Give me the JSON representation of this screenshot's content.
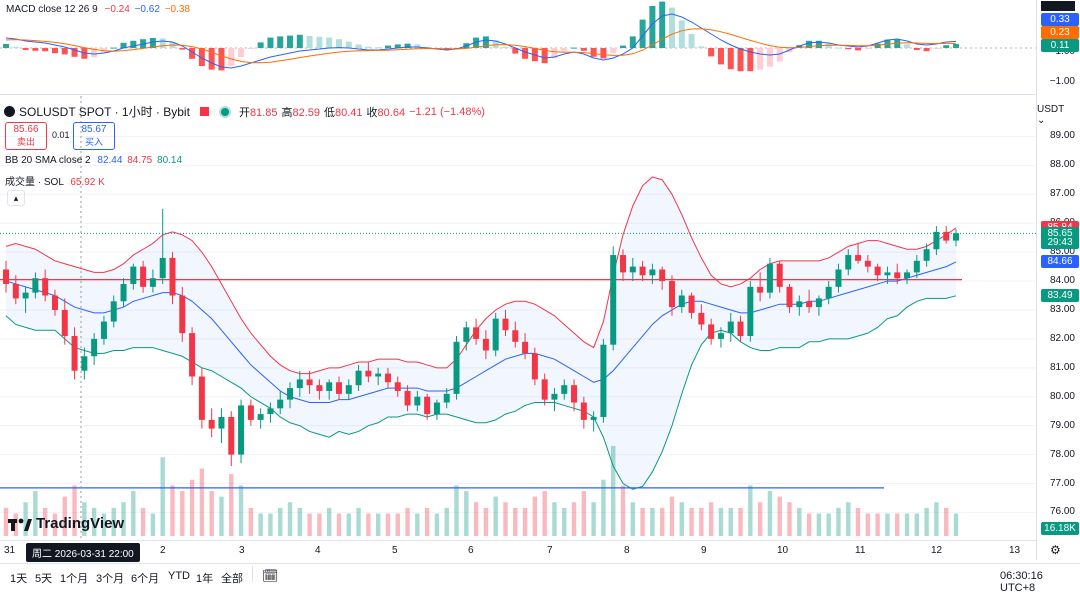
{
  "macd": {
    "title": "MACD close 12 26 9",
    "v1": "−0.24",
    "v2": "−0.62",
    "v3": "−0.38",
    "colors": {
      "v1": "#f23645",
      "v2": "#2962ff",
      "v3": "#ff6d00"
    },
    "axis_ticks": [
      "1.00",
      "−1.00"
    ],
    "badges": [
      {
        "text": "0.33",
        "color": "#2962ff"
      },
      {
        "text": "0.23",
        "color": "#ff6d00"
      },
      {
        "text": "0.11",
        "color": "#089981"
      }
    ],
    "macd_line": [
      0.5,
      0.45,
      0.35,
      0.3,
      0.25,
      0.15,
      0.05,
      -0.1,
      -0.25,
      -0.3,
      -0.25,
      -0.15,
      0.0,
      0.1,
      0.2,
      0.3,
      0.35,
      0.3,
      0.1,
      -0.2,
      -0.5,
      -0.75,
      -0.95,
      -1.0,
      -0.9,
      -0.75,
      -0.6,
      -0.45,
      -0.35,
      -0.25,
      -0.15,
      -0.1,
      -0.05,
      0.0,
      0.02,
      0.0,
      -0.05,
      -0.1,
      -0.1,
      -0.05,
      0.0,
      0.05,
      0.05,
      0.0,
      -0.05,
      -0.1,
      -0.05,
      0.1,
      0.3,
      0.4,
      0.35,
      0.2,
      0.0,
      -0.2,
      -0.35,
      -0.5,
      -0.45,
      -0.3,
      -0.2,
      -0.3,
      -0.5,
      -0.6,
      -0.5,
      -0.3,
      0.0,
      0.6,
      1.2,
      1.6,
      1.7,
      1.55,
      1.3,
      1.0,
      0.7,
      0.4,
      0.15,
      -0.05,
      -0.2,
      -0.3,
      -0.35,
      -0.3,
      -0.1,
      0.1,
      0.25,
      0.3,
      0.25,
      0.15,
      0.1,
      0.05,
      0.1,
      0.25,
      0.4,
      0.45,
      0.35,
      0.2,
      0.15,
      0.2,
      0.3,
      0.33
    ],
    "signal_line": [
      0.4,
      0.42,
      0.4,
      0.37,
      0.33,
      0.28,
      0.21,
      0.12,
      0.02,
      -0.07,
      -0.14,
      -0.16,
      -0.13,
      -0.08,
      -0.02,
      0.05,
      0.11,
      0.15,
      0.14,
      0.07,
      -0.05,
      -0.21,
      -0.39,
      -0.55,
      -0.67,
      -0.73,
      -0.74,
      -0.71,
      -0.64,
      -0.56,
      -0.48,
      -0.4,
      -0.33,
      -0.26,
      -0.2,
      -0.16,
      -0.14,
      -0.13,
      -0.12,
      -0.11,
      -0.09,
      -0.06,
      -0.04,
      -0.03,
      -0.03,
      -0.05,
      -0.05,
      -0.02,
      0.04,
      0.11,
      0.16,
      0.17,
      0.14,
      0.07,
      -0.02,
      -0.12,
      -0.19,
      -0.21,
      -0.21,
      -0.23,
      -0.28,
      -0.34,
      -0.37,
      -0.36,
      -0.29,
      -0.11,
      0.15,
      0.44,
      0.69,
      0.86,
      0.95,
      0.96,
      0.91,
      0.81,
      0.68,
      0.53,
      0.38,
      0.24,
      0.12,
      0.04,
      0.01,
      0.03,
      0.07,
      0.12,
      0.14,
      0.14,
      0.13,
      0.11,
      0.11,
      0.14,
      0.19,
      0.24,
      0.26,
      0.25,
      0.23,
      0.22,
      0.23,
      0.23
    ]
  },
  "header": {
    "symbol": "SOLUSDT SPOT · 1小时 · Bybit",
    "open_label": "开",
    "open": "81.85",
    "high_label": "高",
    "high": "82.59",
    "low_label": "低",
    "low": "80.41",
    "close_label": "收",
    "close": "80.64",
    "change": "−1.21 (−1.48%)",
    "sell_price": "85.66",
    "sell_label": "卖出",
    "spread": "0.01",
    "buy_price": "85.67",
    "buy_label": "买入",
    "currency": "USDT"
  },
  "bb_legend": {
    "label": "BB 20 SMA close 2",
    "basis": "82.44",
    "upper": "84.75",
    "lower": "80.14"
  },
  "vol_legend": {
    "label": "成交量 · SOL",
    "value": "65.92 K"
  },
  "collapse_icon": "chevron-up-icon",
  "price_axis": {
    "ticks": [
      "89.00",
      "88.00",
      "87.00",
      "86.00",
      "85.00",
      "84.00",
      "83.00",
      "82.00",
      "81.00",
      "80.00",
      "79.00",
      "78.00",
      "77.00",
      "76.00"
    ],
    "badges": [
      {
        "text": "85.84",
        "color": "#f23645",
        "price": 85.84
      },
      {
        "text": "85.65",
        "color": "#089981",
        "price": 85.65
      },
      {
        "text": "29:43",
        "color": "#089981",
        "price": 85.35
      },
      {
        "text": "84.66",
        "color": "#2962ff",
        "price": 84.66
      },
      {
        "text": "83.49",
        "color": "#089981",
        "price": 83.49
      }
    ],
    "volume_badge": {
      "text": "16.18K",
      "color": "#089981"
    }
  },
  "time_axis": {
    "labels": [
      "31",
      "2",
      "3",
      "4",
      "5",
      "6",
      "7",
      "8",
      "9",
      "10",
      "11",
      "12",
      "13"
    ],
    "crosshair_label": "周二 2026-03-31   22:00"
  },
  "ranges": [
    "1天",
    "5天",
    "1个月",
    "3个月",
    "6个月",
    "YTD",
    "1年",
    "全部"
  ],
  "calendar_icon": "calendar-icon",
  "clock": "06:30:16 UTC+8",
  "gear_icon": "gear-icon",
  "logo_text": "TradingView",
  "horizontal_lines": [
    {
      "price": 84.05,
      "color": "#f23645"
    },
    {
      "price": 76.85,
      "color": "#2962ff"
    }
  ],
  "chart_data": {
    "type": "candlestick",
    "ylim": [
      75.6,
      89.5
    ],
    "ohlc": [
      [
        84.4,
        84.7,
        83.6,
        83.9
      ],
      [
        83.9,
        84.2,
        83.2,
        83.4
      ],
      [
        83.4,
        83.8,
        82.9,
        83.6
      ],
      [
        83.6,
        84.3,
        83.4,
        84.1
      ],
      [
        84.1,
        84.4,
        83.3,
        83.5
      ],
      [
        83.5,
        83.7,
        82.8,
        83.0
      ],
      [
        83.0,
        83.4,
        81.8,
        82.1
      ],
      [
        82.1,
        82.4,
        80.6,
        80.9
      ],
      [
        80.9,
        81.7,
        80.6,
        81.4
      ],
      [
        81.4,
        82.2,
        81.1,
        82.0
      ],
      [
        82.0,
        82.8,
        81.8,
        82.6
      ],
      [
        82.6,
        83.5,
        82.4,
        83.3
      ],
      [
        83.3,
        84.1,
        83.1,
        83.9
      ],
      [
        83.9,
        84.6,
        83.7,
        84.5
      ],
      [
        84.5,
        84.7,
        83.6,
        83.8
      ],
      [
        83.8,
        84.4,
        83.6,
        84.1
      ],
      [
        84.1,
        86.5,
        83.9,
        84.8
      ],
      [
        84.8,
        85.0,
        83.2,
        83.5
      ],
      [
        83.5,
        83.8,
        81.9,
        82.2
      ],
      [
        82.2,
        82.4,
        80.4,
        80.7
      ],
      [
        80.7,
        81.0,
        78.9,
        79.2
      ],
      [
        79.2,
        79.6,
        78.6,
        78.9
      ],
      [
        78.9,
        79.6,
        78.4,
        79.3
      ],
      [
        79.3,
        79.5,
        77.6,
        78.0
      ],
      [
        78.0,
        79.9,
        77.7,
        79.7
      ],
      [
        79.7,
        79.9,
        79.0,
        79.2
      ],
      [
        79.2,
        79.6,
        78.9,
        79.4
      ],
      [
        79.4,
        79.8,
        79.1,
        79.6
      ],
      [
        79.6,
        80.2,
        79.4,
        79.9
      ],
      [
        79.9,
        80.5,
        79.6,
        80.3
      ],
      [
        80.3,
        80.9,
        80.0,
        80.6
      ],
      [
        80.6,
        80.9,
        80.1,
        80.4
      ],
      [
        80.4,
        80.6,
        79.9,
        80.2
      ],
      [
        80.2,
        80.6,
        79.9,
        80.5
      ],
      [
        80.5,
        80.7,
        79.9,
        80.1
      ],
      [
        80.1,
        80.6,
        79.9,
        80.4
      ],
      [
        80.4,
        81.1,
        80.2,
        80.9
      ],
      [
        80.9,
        81.2,
        80.5,
        80.7
      ],
      [
        80.7,
        81.0,
        80.4,
        80.8
      ],
      [
        80.8,
        81.0,
        80.3,
        80.5
      ],
      [
        80.5,
        80.7,
        80.0,
        80.2
      ],
      [
        80.2,
        80.4,
        79.5,
        79.7
      ],
      [
        79.7,
        80.2,
        79.5,
        80.0
      ],
      [
        80.0,
        80.1,
        79.2,
        79.4
      ],
      [
        79.4,
        79.9,
        79.2,
        79.8
      ],
      [
        79.8,
        80.3,
        79.6,
        80.1
      ],
      [
        80.1,
        82.1,
        79.9,
        81.9
      ],
      [
        81.9,
        82.6,
        81.6,
        82.4
      ],
      [
        82.4,
        82.7,
        81.8,
        82.0
      ],
      [
        82.0,
        82.3,
        81.3,
        81.6
      ],
      [
        81.6,
        82.9,
        81.4,
        82.7
      ],
      [
        82.7,
        83.0,
        82.1,
        82.3
      ],
      [
        82.3,
        82.6,
        81.7,
        81.9
      ],
      [
        81.9,
        82.2,
        81.3,
        81.5
      ],
      [
        81.5,
        81.7,
        80.4,
        80.6
      ],
      [
        80.6,
        80.8,
        79.7,
        79.9
      ],
      [
        79.9,
        80.3,
        79.5,
        80.1
      ],
      [
        80.1,
        80.6,
        79.9,
        80.4
      ],
      [
        80.4,
        80.6,
        79.5,
        79.8
      ],
      [
        79.8,
        80.0,
        78.9,
        79.2
      ],
      [
        79.2,
        79.5,
        78.8,
        79.3
      ],
      [
        79.3,
        82.0,
        79.1,
        81.8
      ],
      [
        81.8,
        85.2,
        81.6,
        84.9
      ],
      [
        84.9,
        85.1,
        84.0,
        84.3
      ],
      [
        84.3,
        84.8,
        84.0,
        84.5
      ],
      [
        84.5,
        84.7,
        84.0,
        84.2
      ],
      [
        84.2,
        84.6,
        83.9,
        84.4
      ],
      [
        84.4,
        84.5,
        83.7,
        84.0
      ],
      [
        84.0,
        84.2,
        82.8,
        83.1
      ],
      [
        83.1,
        83.7,
        82.9,
        83.5
      ],
      [
        83.5,
        83.6,
        82.7,
        82.9
      ],
      [
        82.9,
        83.2,
        82.3,
        82.5
      ],
      [
        82.5,
        82.7,
        81.8,
        82.0
      ],
      [
        82.0,
        82.4,
        81.7,
        82.2
      ],
      [
        82.2,
        82.9,
        81.9,
        82.6
      ],
      [
        82.6,
        82.8,
        81.9,
        82.1
      ],
      [
        82.1,
        84.0,
        81.9,
        83.8
      ],
      [
        83.8,
        84.3,
        83.3,
        83.6
      ],
      [
        83.6,
        84.8,
        83.4,
        84.6
      ],
      [
        84.6,
        84.7,
        83.6,
        83.8
      ],
      [
        83.8,
        83.9,
        82.9,
        83.1
      ],
      [
        83.1,
        83.5,
        82.8,
        83.3
      ],
      [
        83.3,
        83.7,
        82.9,
        83.1
      ],
      [
        83.1,
        83.5,
        82.8,
        83.4
      ],
      [
        83.4,
        84.0,
        83.2,
        83.8
      ],
      [
        83.8,
        84.6,
        83.6,
        84.4
      ],
      [
        84.4,
        85.1,
        84.2,
        84.9
      ],
      [
        84.9,
        85.3,
        84.6,
        84.7
      ],
      [
        84.7,
        84.9,
        84.3,
        84.5
      ],
      [
        84.5,
        84.6,
        84.0,
        84.2
      ],
      [
        84.2,
        84.5,
        83.9,
        84.3
      ],
      [
        84.3,
        84.6,
        83.9,
        84.1
      ],
      [
        84.1,
        84.4,
        83.9,
        84.3
      ],
      [
        84.3,
        84.9,
        84.1,
        84.7
      ],
      [
        84.7,
        85.3,
        84.5,
        85.1
      ],
      [
        85.1,
        85.9,
        84.9,
        85.7
      ],
      [
        85.7,
        85.9,
        85.3,
        85.4
      ],
      [
        85.4,
        85.8,
        85.2,
        85.65
      ]
    ],
    "bb_basis": [
      84.0,
      83.9,
      83.8,
      83.7,
      83.6,
      83.5,
      83.3,
      83.1,
      83.0,
      82.9,
      82.9,
      83.0,
      83.1,
      83.3,
      83.4,
      83.5,
      83.6,
      83.6,
      83.5,
      83.3,
      83.0,
      82.7,
      82.3,
      81.9,
      81.5,
      81.1,
      80.8,
      80.5,
      80.2,
      80.0,
      79.9,
      79.8,
      79.8,
      79.8,
      79.9,
      79.9,
      80.0,
      80.1,
      80.2,
      80.3,
      80.3,
      80.3,
      80.3,
      80.2,
      80.2,
      80.2,
      80.3,
      80.5,
      80.7,
      80.9,
      81.1,
      81.3,
      81.4,
      81.5,
      81.5,
      81.4,
      81.3,
      81.1,
      80.9,
      80.7,
      80.5,
      80.6,
      80.9,
      81.3,
      81.7,
      82.1,
      82.5,
      82.8,
      83.0,
      83.2,
      83.3,
      83.3,
      83.2,
      83.1,
      83.0,
      82.9,
      82.9,
      83.0,
      83.1,
      83.2,
      83.2,
      83.2,
      83.3,
      83.3,
      83.4,
      83.5,
      83.6,
      83.7,
      83.8,
      83.9,
      84.0,
      84.0,
      84.1,
      84.2,
      84.3,
      84.4,
      84.5,
      84.66
    ],
    "bb_upper": [
      85.2,
      85.3,
      85.2,
      85.1,
      84.9,
      84.7,
      84.6,
      84.5,
      84.4,
      84.3,
      84.3,
      84.4,
      84.6,
      84.9,
      85.1,
      85.3,
      85.6,
      85.7,
      85.6,
      85.4,
      85.0,
      84.5,
      83.9,
      83.3,
      82.7,
      82.2,
      81.8,
      81.4,
      81.1,
      80.9,
      80.8,
      80.8,
      80.9,
      81.0,
      81.0,
      81.1,
      81.2,
      81.2,
      81.3,
      81.3,
      81.3,
      81.2,
      81.2,
      81.1,
      81.0,
      81.0,
      81.3,
      81.8,
      82.3,
      82.7,
      83.0,
      83.2,
      83.3,
      83.3,
      83.2,
      83.0,
      82.8,
      82.5,
      82.2,
      81.9,
      81.7,
      82.6,
      84.2,
      85.6,
      86.6,
      87.3,
      87.6,
      87.5,
      87.0,
      86.3,
      85.5,
      84.8,
      84.2,
      83.9,
      83.8,
      83.9,
      84.1,
      84.4,
      84.6,
      84.7,
      84.7,
      84.7,
      84.7,
      84.7,
      84.8,
      85.0,
      85.2,
      85.3,
      85.4,
      85.4,
      85.3,
      85.2,
      85.1,
      85.1,
      85.2,
      85.4,
      85.6,
      85.84
    ],
    "bb_lower": [
      82.8,
      82.5,
      82.4,
      82.3,
      82.3,
      82.3,
      82.0,
      81.7,
      81.6,
      81.5,
      81.5,
      81.6,
      81.6,
      81.7,
      81.7,
      81.7,
      81.6,
      81.5,
      81.4,
      81.2,
      81.0,
      80.9,
      80.7,
      80.5,
      80.3,
      80.0,
      79.8,
      79.6,
      79.3,
      79.1,
      79.0,
      78.8,
      78.7,
      78.6,
      78.8,
      78.7,
      78.8,
      79.0,
      79.1,
      79.3,
      79.3,
      79.4,
      79.4,
      79.3,
      79.4,
      79.4,
      79.3,
      79.2,
      79.1,
      79.1,
      79.2,
      79.4,
      79.5,
      79.7,
      79.8,
      79.8,
      79.8,
      79.7,
      79.6,
      79.5,
      79.3,
      78.6,
      77.6,
      77.0,
      76.8,
      76.9,
      77.4,
      78.1,
      79.0,
      80.1,
      81.1,
      81.8,
      82.2,
      82.3,
      82.2,
      81.9,
      81.7,
      81.6,
      81.6,
      81.7,
      81.7,
      81.7,
      81.9,
      81.9,
      82.0,
      82.0,
      82.0,
      82.1,
      82.2,
      82.4,
      82.7,
      82.8,
      83.1,
      83.3,
      83.4,
      83.4,
      83.4,
      83.49
    ],
    "volume": [
      5,
      4,
      6,
      8,
      5,
      4,
      7,
      9,
      6,
      5,
      4,
      5,
      6,
      8,
      5,
      4,
      14,
      9,
      8,
      10,
      12,
      8,
      7,
      11,
      9,
      5,
      4,
      4,
      5,
      6,
      5,
      4,
      4,
      5,
      4,
      4,
      5,
      4,
      4,
      4,
      4,
      5,
      4,
      5,
      4,
      5,
      9,
      8,
      6,
      5,
      7,
      6,
      5,
      5,
      7,
      8,
      6,
      5,
      6,
      8,
      6,
      10,
      16,
      9,
      6,
      5,
      5,
      5,
      7,
      6,
      5,
      5,
      6,
      5,
      5,
      5,
      9,
      6,
      8,
      7,
      6,
      5,
      4,
      4,
      4,
      5,
      6,
      5,
      4,
      4,
      4,
      4,
      4,
      4,
      5,
      6,
      5,
      4
    ]
  }
}
